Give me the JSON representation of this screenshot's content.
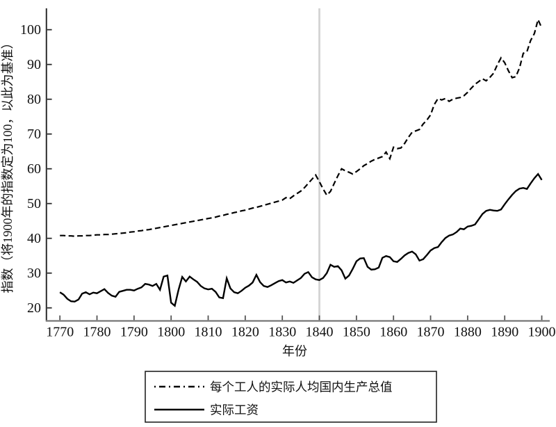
{
  "figure": {
    "background": "#ffffff",
    "line_color": "#000000",
    "axis_color": "#2b2b2b",
    "x_axis_color": "#7d7d7d"
  },
  "chart_data": {
    "type": "line",
    "title": "",
    "xlabel": "年份",
    "ylabel": "指数（将1900年的指数定为100，以此为基准）",
    "legend_position": "bottom",
    "grid": false,
    "x_start": 1770,
    "x_step": 1,
    "xlim": [
      1766.2,
      1902
    ],
    "ylim": [
      16.1,
      105.9
    ],
    "x_ticks": [
      1770,
      1780,
      1790,
      1800,
      1810,
      1820,
      1830,
      1840,
      1850,
      1860,
      1870,
      1880,
      1890,
      1900
    ],
    "y_ticks": [
      20,
      30,
      40,
      50,
      60,
      70,
      80,
      90,
      100
    ],
    "reference_line": {
      "x": 1840,
      "color": "#d3d3d3"
    },
    "series": [
      {
        "name": "每个工人的实际人均国内生产总值",
        "style": "dashed",
        "color": "#000000",
        "values": [
          40.8,
          40.8,
          40.7,
          40.7,
          40.6,
          40.7,
          40.7,
          40.8,
          40.8,
          40.9,
          41.0,
          41.0,
          41.1,
          41.1,
          41.2,
          41.3,
          41.4,
          41.5,
          41.6,
          41.8,
          41.9,
          42.1,
          42.2,
          42.4,
          42.5,
          42.7,
          42.9,
          43.1,
          43.3,
          43.5,
          43.7,
          43.9,
          44.1,
          44.3,
          44.5,
          44.7,
          44.9,
          45.1,
          45.3,
          45.5,
          45.7,
          45.9,
          46.1,
          46.4,
          46.6,
          46.9,
          47.1,
          47.4,
          47.6,
          47.9,
          48.1,
          48.4,
          48.7,
          48.9,
          49.2,
          49.5,
          49.8,
          50.1,
          50.4,
          50.7,
          51.0,
          51.7,
          51.4,
          52.2,
          52.9,
          53.6,
          54.6,
          55.8,
          57.0,
          58.2,
          56.3,
          54.2,
          52.4,
          53.5,
          55.8,
          58.0,
          60.0,
          59.4,
          59.0,
          58.5,
          59.2,
          60.0,
          60.9,
          61.5,
          62.2,
          62.7,
          63.1,
          63.5,
          64.8,
          62.9,
          66.2,
          65.8,
          66.0,
          67.3,
          69.0,
          70.5,
          70.9,
          71.3,
          72.9,
          74.0,
          75.5,
          78.5,
          80.2,
          79.8,
          80.2,
          79.4,
          80.0,
          80.3,
          80.5,
          81.0,
          82.0,
          83.2,
          84.3,
          85.1,
          85.9,
          85.3,
          86.3,
          87.5,
          89.9,
          91.9,
          90.5,
          88.2,
          86.2,
          86.5,
          89.0,
          93.2,
          93.7,
          96.9,
          98.9,
          102.9,
          100.5
        ]
      },
      {
        "name": "实际工资",
        "style": "solid",
        "color": "#000000",
        "values": [
          24.5,
          23.8,
          22.6,
          21.9,
          21.8,
          22.4,
          24.1,
          24.5,
          23.9,
          24.4,
          24.2,
          24.8,
          25.4,
          24.3,
          23.5,
          23.2,
          24.6,
          24.9,
          25.2,
          25.2,
          25.0,
          25.5,
          25.9,
          26.9,
          26.7,
          26.3,
          26.9,
          25.2,
          29.0,
          29.3,
          21.5,
          20.6,
          25.2,
          28.9,
          27.6,
          29.0,
          28.2,
          27.5,
          26.3,
          25.6,
          25.3,
          25.5,
          24.6,
          23.0,
          22.8,
          28.5,
          25.6,
          24.5,
          24.2,
          24.9,
          25.8,
          26.4,
          27.3,
          29.5,
          27.4,
          26.3,
          26.0,
          26.5,
          27.1,
          27.7,
          28.0,
          27.3,
          27.6,
          27.2,
          27.9,
          28.6,
          29.8,
          30.3,
          28.8,
          28.2,
          28.0,
          28.6,
          30.0,
          32.4,
          31.8,
          32.0,
          30.8,
          28.4,
          29.3,
          31.2,
          33.4,
          34.2,
          34.3,
          31.8,
          31.0,
          31.1,
          31.6,
          34.4,
          34.9,
          34.6,
          33.4,
          33.2,
          34.1,
          35.1,
          35.8,
          36.2,
          35.4,
          33.6,
          34.0,
          35.2,
          36.5,
          37.2,
          37.5,
          38.9,
          40.1,
          40.8,
          41.1,
          41.8,
          42.8,
          42.6,
          43.4,
          43.6,
          44.0,
          45.5,
          47.0,
          47.9,
          48.2,
          48.0,
          47.9,
          48.3,
          49.8,
          51.2,
          52.5,
          53.6,
          54.3,
          54.5,
          54.2,
          55.8,
          57.3,
          58.5,
          56.8
        ]
      }
    ]
  }
}
